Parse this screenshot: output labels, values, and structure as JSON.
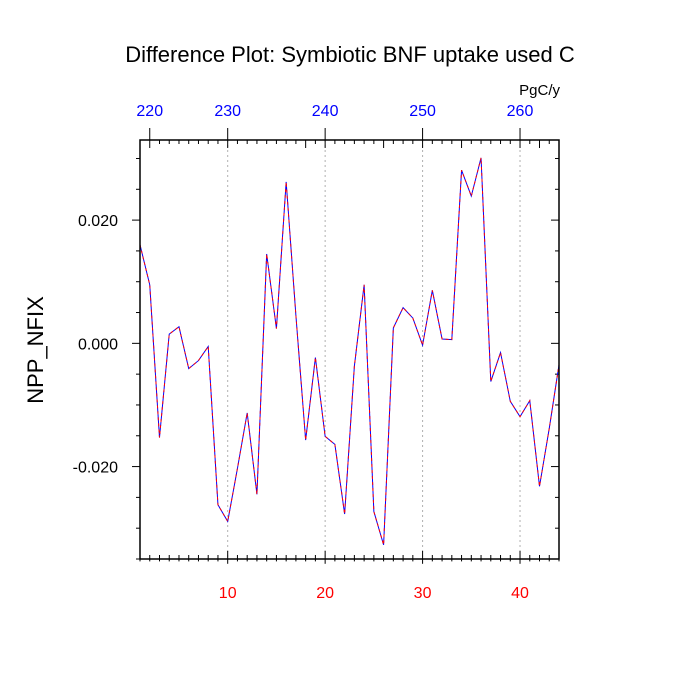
{
  "chart_data": {
    "type": "line",
    "title": "Difference Plot: Symbiotic BNF uptake used C",
    "ylabel": "NPP_NFIX",
    "top_axis_units": "PgC/y",
    "xlim": [
      1,
      44
    ],
    "ylim": [
      -0.035,
      0.033
    ],
    "bottom_ticks": [
      10,
      20,
      30,
      40
    ],
    "top_ticks": [
      {
        "label": "220",
        "x": 2
      },
      {
        "label": "230",
        "x": 10
      },
      {
        "label": "240",
        "x": 20
      },
      {
        "label": "250",
        "x": 30
      },
      {
        "label": "260",
        "x": 40
      }
    ],
    "y_ticks": [
      {
        "value": -0.02,
        "label": "-0.020"
      },
      {
        "value": 0.0,
        "label": "0.000"
      },
      {
        "value": 0.02,
        "label": "0.020"
      }
    ],
    "vertical_gridlines": [
      10,
      20,
      30,
      40
    ],
    "colors": {
      "line_main": "#0000ff",
      "line_overlay": "#ff0000",
      "bottom_tick_labels": "#ff0000",
      "top_tick_labels": "#0000ff",
      "left_tick_labels": "#000000"
    },
    "series": [
      {
        "x": [
          1,
          2,
          3,
          4,
          5,
          6,
          7,
          8,
          9,
          10,
          11,
          12,
          13,
          14,
          15,
          16,
          17,
          18,
          19,
          20,
          21,
          22,
          23,
          24,
          25,
          26,
          27,
          28,
          29,
          30,
          31,
          32,
          33,
          34,
          35,
          36,
          37,
          38,
          39,
          40,
          41,
          42,
          43,
          44
        ],
        "values": [
          0.016,
          0.0095,
          -0.0153,
          0.0015,
          0.0027,
          -0.0041,
          -0.0028,
          -0.0005,
          -0.0262,
          -0.0289,
          -0.0203,
          -0.0113,
          -0.0245,
          0.0145,
          0.0024,
          0.0262,
          0.0045,
          -0.0157,
          -0.0023,
          -0.0151,
          -0.0164,
          -0.0277,
          -0.0037,
          0.0095,
          -0.0273,
          -0.0327,
          0.0025,
          0.0058,
          0.0041,
          -0.0003,
          0.0086,
          0.0007,
          0.0006,
          0.0281,
          0.0239,
          0.0301,
          -0.0062,
          -0.0015,
          -0.0094,
          -0.0119,
          -0.0093,
          -0.0232,
          -0.0138,
          -0.0035
        ]
      }
    ]
  }
}
